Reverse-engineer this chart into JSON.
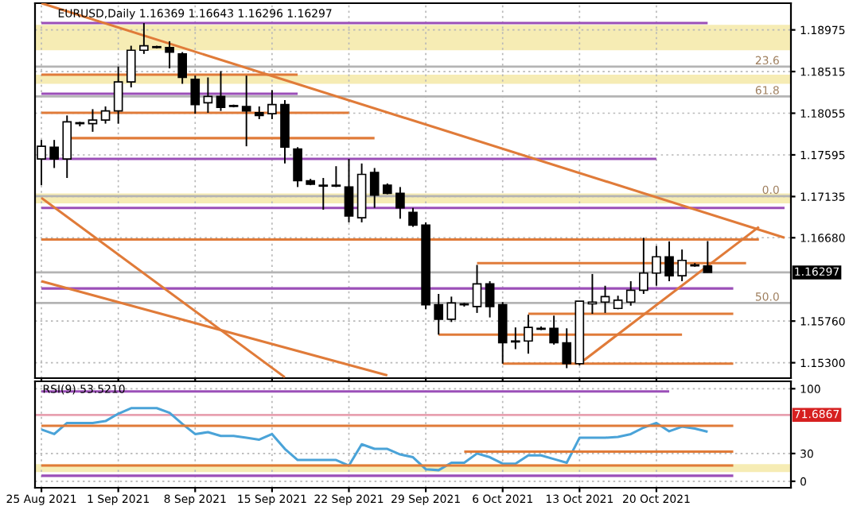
{
  "chart_data": [
    {
      "type": "candlestick",
      "title": "EURUSD,Daily 1.16369 1.16643 1.16296 1.16297",
      "categories": [
        null,
        null,
        null,
        null,
        null,
        null,
        null,
        null,
        null,
        null,
        null,
        null,
        null,
        null,
        null,
        null,
        null,
        null,
        null,
        null,
        null,
        null,
        null,
        null,
        null,
        null,
        null,
        null,
        null,
        null,
        null,
        null,
        null,
        null,
        null,
        null,
        null,
        null,
        null,
        null,
        null,
        null,
        null,
        null,
        null,
        null,
        null,
        null,
        null,
        null,
        null,
        null,
        null,
        null,
        null,
        null,
        null,
        null,
        null
      ],
      "ohlc": [
        [
          1.1755,
          1.1776,
          1.1726,
          1.1769
        ],
        [
          1.1768,
          1.1776,
          1.1745,
          1.1755
        ],
        [
          1.1755,
          1.1803,
          1.1734,
          1.1796
        ],
        [
          1.1794,
          1.1796,
          1.1791,
          1.1795
        ],
        [
          1.1794,
          1.181,
          1.1785,
          1.1798
        ],
        [
          1.1798,
          1.1813,
          1.1794,
          1.1808
        ],
        [
          1.1808,
          1.1857,
          1.1794,
          1.184
        ],
        [
          1.184,
          1.188,
          1.1834,
          1.1875
        ],
        [
          1.1875,
          1.1905,
          1.1871,
          1.188
        ],
        [
          1.1878,
          1.188,
          1.1877,
          1.1879
        ],
        [
          1.1878,
          1.1885,
          1.1855,
          1.1873
        ],
        [
          1.1871,
          1.1873,
          1.1838,
          1.1845
        ],
        [
          1.1843,
          1.1847,
          1.1805,
          1.1815
        ],
        [
          1.1817,
          1.1845,
          1.1806,
          1.1824
        ],
        [
          1.1824,
          1.1852,
          1.1808,
          1.1812
        ],
        [
          1.1813,
          1.1815,
          1.1812,
          1.1814
        ],
        [
          1.1813,
          1.1847,
          1.1769,
          1.1808
        ],
        [
          1.1806,
          1.1813,
          1.1799,
          1.1803
        ],
        [
          1.1805,
          1.1831,
          1.1799,
          1.1815
        ],
        [
          1.1815,
          1.182,
          1.175,
          1.1768
        ],
        [
          1.1766,
          1.1768,
          1.1724,
          1.1731
        ],
        [
          1.1731,
          1.1733,
          1.1726,
          1.1727
        ],
        [
          1.1726,
          1.1734,
          1.1699,
          1.1725
        ],
        [
          1.1726,
          1.1747,
          1.1724,
          1.1725
        ],
        [
          1.1724,
          1.1755,
          1.1685,
          1.1692
        ],
        [
          1.169,
          1.175,
          1.1685,
          1.1738
        ],
        [
          1.174,
          1.1745,
          1.1701,
          1.1715
        ],
        [
          1.1726,
          1.1728,
          1.1716,
          1.1717
        ],
        [
          1.1717,
          1.1724,
          1.1689,
          1.1701
        ],
        [
          1.1696,
          1.1701,
          1.168,
          1.1682
        ],
        [
          1.1682,
          1.1685,
          1.1589,
          1.1594
        ],
        [
          1.1594,
          1.1606,
          1.1561,
          1.1578
        ],
        [
          1.1578,
          1.1603,
          1.1575,
          1.1596
        ],
        [
          1.1594,
          1.1596,
          1.1592,
          1.1595
        ],
        [
          1.1592,
          1.1638,
          1.1585,
          1.1617
        ],
        [
          1.1617,
          1.162,
          1.158,
          1.1592
        ],
        [
          1.1594,
          1.1597,
          1.1529,
          1.1552
        ],
        [
          1.1554,
          1.1569,
          1.1545,
          1.1553
        ],
        [
          1.1554,
          1.1583,
          1.154,
          1.1569
        ],
        [
          1.1568,
          1.157,
          1.1566,
          1.1567
        ],
        [
          1.1568,
          1.1582,
          1.155,
          1.1552
        ],
        [
          1.1552,
          1.1568,
          1.1524,
          1.1529
        ],
        [
          1.1529,
          1.1598,
          1.1527,
          1.1598
        ],
        [
          1.1595,
          1.1628,
          1.1584,
          1.1597
        ],
        [
          1.1597,
          1.1615,
          1.1585,
          1.1603
        ],
        [
          1.159,
          1.1604,
          1.1589,
          1.1599
        ],
        [
          1.1597,
          1.162,
          1.1593,
          1.161
        ],
        [
          1.161,
          1.1668,
          1.1606,
          1.1629
        ],
        [
          1.1629,
          1.1659,
          1.1615,
          1.1647
        ],
        [
          1.1647,
          1.1664,
          1.162,
          1.1626
        ],
        [
          1.1626,
          1.1655,
          1.162,
          1.1643
        ],
        [
          1.1638,
          1.164,
          1.1636,
          1.1637
        ],
        [
          1.16369,
          1.16643,
          1.16296,
          1.16297
        ],
        null,
        null,
        null,
        null,
        null,
        null
      ],
      "ylim": [
        1.1513,
        1.1927
      ],
      "yticks": [
        1.18975,
        1.18515,
        1.18055,
        1.17595,
        1.17135,
        {
          "value": 1.1668,
          "label": "1.16680"
        },
        {
          "value": 1.1576,
          "label": "1.15760"
        },
        {
          "value": 1.153,
          "label": "1.15300"
        }
      ],
      "tick_labels": "y",
      "grid": true,
      "bands": [
        {
          "axis": "y",
          "from": 1.1875,
          "to": 1.1903,
          "color": "#f6ecb4"
        },
        {
          "axis": "y",
          "from": 1.1838,
          "to": 1.1848,
          "color": "#f6ecb4"
        },
        {
          "axis": "y",
          "from": 1.1706,
          "to": 1.1717,
          "color": "#f6ecb4"
        }
      ],
      "ref_lines": [
        {
          "axis": "y",
          "value": 1.1857,
          "color": "#b4b4b4"
        },
        {
          "axis": "y",
          "value": 1.1824,
          "color": "#b4b4b4"
        },
        {
          "axis": "y",
          "value": 1.1714,
          "color": "#b4b4b4"
        },
        {
          "axis": "y",
          "value": 1.1596,
          "color": "#b4b4b4"
        },
        {
          "axis": "y",
          "value": 1.16297,
          "label": "1.16297",
          "color": "#b4b4b4"
        }
      ],
      "annotations": [
        {
          "text": "23.6",
          "y": 1.1857
        },
        {
          "text": "61.8",
          "y": 1.1824
        },
        {
          "text": "0.0",
          "y": 1.1714
        },
        {
          "text": "50.0",
          "y": 1.1596
        }
      ],
      "series": [
        {
          "type": "line",
          "color": "#9b4fb8",
          "values": [
            1.1905,
            null,
            null,
            null,
            null,
            null,
            null,
            null,
            null,
            null,
            null,
            null,
            null,
            null,
            null,
            null,
            null,
            null,
            null,
            null,
            null,
            null,
            null,
            null,
            null,
            null,
            null,
            null,
            null,
            null,
            null,
            null,
            null,
            null,
            null,
            null,
            null,
            null,
            null,
            null,
            null,
            null,
            null,
            null,
            null,
            null,
            null,
            null,
            null,
            null,
            null,
            null,
            1.1905,
            null,
            null,
            null,
            null,
            null,
            null
          ]
        },
        {
          "type": "line",
          "color": "#e07b39",
          "values": [
            1.1848,
            null,
            null,
            null,
            null,
            null,
            null,
            null,
            null,
            null,
            null,
            null,
            null,
            null,
            null,
            null,
            null,
            null,
            null,
            null,
            1.1848,
            null,
            null,
            null,
            null,
            null,
            null,
            null,
            null,
            null,
            null,
            null,
            null,
            null,
            null,
            null,
            null,
            null,
            null,
            null,
            null,
            null,
            null,
            null,
            null,
            null,
            null,
            null,
            null,
            null,
            null,
            null,
            null,
            null,
            null,
            null,
            null,
            null,
            null
          ]
        },
        {
          "type": "line",
          "color": "#9b4fb8",
          "values": [
            1.1827,
            null,
            null,
            null,
            null,
            null,
            null,
            null,
            null,
            null,
            null,
            null,
            null,
            null,
            null,
            null,
            null,
            null,
            null,
            null,
            1.1827,
            null,
            null,
            null,
            null,
            null,
            null,
            null,
            null,
            null,
            null,
            null,
            null,
            null,
            null,
            null,
            null,
            null,
            null,
            null,
            null,
            null,
            null,
            null,
            null,
            null,
            null,
            null,
            null,
            null,
            null,
            null,
            null,
            null,
            null,
            null,
            null,
            null,
            null
          ]
        },
        {
          "type": "line",
          "color": "#e07b39",
          "values": [
            1.1806,
            null,
            null,
            null,
            null,
            null,
            null,
            null,
            null,
            null,
            null,
            null,
            null,
            null,
            null,
            null,
            null,
            null,
            null,
            null,
            null,
            null,
            null,
            null,
            1.1806,
            null,
            null,
            null,
            null,
            null,
            null,
            null,
            null,
            null,
            null,
            null,
            null,
            null,
            null,
            null,
            null,
            null,
            null,
            null,
            null,
            null,
            null,
            null,
            null,
            null,
            null,
            null,
            null,
            null,
            null,
            null,
            null,
            null,
            null
          ]
        },
        {
          "type": "line",
          "color": "#e07b39",
          "values": [
            null,
            null,
            1.1778,
            null,
            null,
            null,
            null,
            null,
            null,
            null,
            null,
            null,
            null,
            null,
            null,
            null,
            null,
            null,
            null,
            null,
            null,
            null,
            null,
            null,
            null,
            null,
            1.1778,
            null,
            null,
            null,
            null,
            null,
            null,
            null,
            null,
            null,
            null,
            null,
            null,
            null,
            null,
            null,
            null,
            null,
            null,
            null,
            null,
            null,
            null,
            null,
            null,
            null,
            null,
            null,
            null,
            null,
            null,
            null,
            null
          ]
        },
        {
          "type": "line",
          "color": "#9b4fb8",
          "values": [
            1.1755,
            null,
            null,
            null,
            null,
            null,
            null,
            null,
            null,
            null,
            null,
            null,
            null,
            null,
            null,
            null,
            null,
            null,
            null,
            null,
            null,
            null,
            null,
            null,
            null,
            null,
            null,
            null,
            null,
            null,
            null,
            null,
            null,
            null,
            null,
            null,
            null,
            null,
            null,
            null,
            null,
            null,
            null,
            null,
            null,
            null,
            null,
            null,
            1.1755,
            null,
            null,
            null,
            null,
            null,
            null,
            null,
            null,
            null,
            null
          ]
        },
        {
          "type": "line",
          "color": "#9b4fb8",
          "values": [
            1.1701,
            null,
            null,
            null,
            null,
            null,
            null,
            null,
            null,
            null,
            null,
            null,
            null,
            null,
            null,
            null,
            null,
            null,
            null,
            null,
            null,
            null,
            null,
            null,
            null,
            null,
            null,
            null,
            null,
            null,
            null,
            null,
            null,
            null,
            null,
            null,
            null,
            null,
            null,
            null,
            null,
            null,
            null,
            null,
            null,
            null,
            null,
            null,
            null,
            null,
            null,
            null,
            null,
            null,
            null,
            null,
            null,
            null,
            1.1701
          ]
        },
        {
          "type": "line",
          "color": "#e07b39",
          "values": [
            1.1666,
            null,
            null,
            null,
            null,
            null,
            null,
            null,
            null,
            null,
            null,
            null,
            null,
            null,
            null,
            null,
            null,
            null,
            null,
            null,
            null,
            null,
            null,
            null,
            null,
            null,
            null,
            null,
            null,
            null,
            null,
            null,
            null,
            null,
            null,
            null,
            null,
            null,
            null,
            null,
            null,
            null,
            null,
            null,
            null,
            null,
            null,
            null,
            null,
            null,
            null,
            null,
            null,
            null,
            null,
            null,
            1.1666,
            null,
            null
          ]
        },
        {
          "type": "line",
          "color": "#e07b39",
          "values": [
            null,
            null,
            null,
            null,
            null,
            null,
            null,
            null,
            null,
            null,
            null,
            null,
            null,
            null,
            null,
            null,
            null,
            null,
            null,
            null,
            null,
            null,
            null,
            null,
            null,
            null,
            null,
            null,
            null,
            null,
            null,
            null,
            null,
            null,
            1.164,
            null,
            null,
            null,
            null,
            null,
            null,
            null,
            null,
            null,
            null,
            null,
            null,
            null,
            null,
            null,
            null,
            null,
            null,
            null,
            null,
            1.164,
            null,
            null,
            null
          ]
        },
        {
          "type": "line",
          "color": "#9b4fb8",
          "values": [
            1.1612,
            null,
            null,
            null,
            null,
            null,
            null,
            null,
            null,
            null,
            null,
            null,
            null,
            null,
            null,
            null,
            null,
            null,
            null,
            null,
            null,
            null,
            null,
            null,
            null,
            null,
            null,
            null,
            null,
            null,
            null,
            null,
            null,
            null,
            null,
            null,
            null,
            null,
            null,
            null,
            null,
            null,
            null,
            null,
            null,
            null,
            null,
            null,
            null,
            null,
            null,
            null,
            null,
            null,
            1.1612,
            null,
            null,
            null,
            null
          ]
        },
        {
          "type": "line",
          "color": "#e07b39",
          "values": [
            null,
            null,
            null,
            null,
            null,
            null,
            null,
            null,
            null,
            null,
            null,
            null,
            null,
            null,
            null,
            null,
            null,
            null,
            null,
            null,
            null,
            null,
            null,
            null,
            null,
            null,
            null,
            null,
            null,
            null,
            null,
            null,
            null,
            null,
            null,
            null,
            null,
            null,
            1.1584,
            null,
            null,
            null,
            null,
            null,
            null,
            null,
            null,
            null,
            null,
            null,
            null,
            null,
            null,
            null,
            1.1584,
            null,
            null,
            null,
            null
          ]
        },
        {
          "type": "line",
          "color": "#e07b39",
          "values": [
            null,
            null,
            null,
            null,
            null,
            null,
            null,
            null,
            null,
            null,
            null,
            null,
            null,
            null,
            null,
            null,
            null,
            null,
            null,
            null,
            null,
            null,
            null,
            null,
            null,
            null,
            null,
            null,
            null,
            null,
            null,
            1.1561,
            null,
            null,
            null,
            null,
            null,
            null,
            null,
            null,
            null,
            null,
            null,
            null,
            null,
            null,
            null,
            null,
            null,
            null,
            1.1561,
            null,
            null,
            null,
            null,
            null,
            null,
            null,
            null
          ]
        },
        {
          "type": "line",
          "color": "#e07b39",
          "values": [
            null,
            null,
            null,
            null,
            null,
            null,
            null,
            null,
            null,
            null,
            null,
            null,
            null,
            null,
            null,
            null,
            null,
            null,
            null,
            null,
            null,
            null,
            null,
            null,
            null,
            null,
            null,
            null,
            null,
            null,
            null,
            null,
            null,
            null,
            null,
            null,
            1.1529,
            null,
            null,
            null,
            null,
            null,
            null,
            null,
            null,
            null,
            null,
            null,
            null,
            null,
            null,
            null,
            null,
            null,
            1.1529,
            null,
            null,
            null,
            null
          ]
        },
        {
          "type": "line",
          "color": "#e07b39",
          "values": [
            1.1927,
            null,
            null,
            null,
            null,
            null,
            null,
            null,
            null,
            null,
            null,
            null,
            null,
            null,
            null,
            null,
            null,
            null,
            null,
            null,
            null,
            null,
            null,
            null,
            null,
            null,
            null,
            null,
            null,
            null,
            null,
            null,
            null,
            null,
            null,
            null,
            null,
            null,
            null,
            null,
            null,
            null,
            null,
            null,
            null,
            null,
            null,
            null,
            null,
            null,
            null,
            null,
            null,
            null,
            null,
            null,
            null,
            null,
            1.1668
          ]
        },
        {
          "type": "line",
          "color": "#e07b39",
          "values": [
            null,
            null,
            null,
            null,
            null,
            null,
            null,
            null,
            null,
            null,
            null,
            null,
            null,
            null,
            null,
            null,
            null,
            null,
            null,
            null,
            null,
            null,
            null,
            null,
            null,
            null,
            null,
            null,
            null,
            null,
            null,
            null,
            null,
            null,
            null,
            null,
            null,
            null,
            null,
            null,
            null,
            null,
            1.1529,
            null,
            null,
            null,
            null,
            null,
            null,
            null,
            null,
            null,
            null,
            null,
            null,
            null,
            1.168,
            null,
            null
          ]
        },
        {
          "type": "line",
          "color": "#e07b39",
          "values": [
            1.1712,
            null,
            null,
            null,
            null,
            null,
            null,
            null,
            null,
            null,
            null,
            null,
            null,
            null,
            null,
            null,
            null,
            null,
            null,
            1.1514,
            null,
            null,
            null,
            null,
            null,
            null,
            null,
            null,
            null,
            null,
            null,
            null,
            null,
            null,
            null,
            null,
            null,
            null,
            null,
            null,
            null,
            null,
            null,
            null,
            null,
            null,
            null,
            null,
            null,
            null,
            null,
            null,
            null,
            null,
            null,
            null,
            null,
            null,
            null
          ]
        },
        {
          "type": "line",
          "color": "#e07b39",
          "values": [
            1.162,
            null,
            null,
            null,
            null,
            null,
            null,
            null,
            null,
            null,
            null,
            null,
            null,
            null,
            null,
            null,
            null,
            null,
            null,
            null,
            null,
            null,
            null,
            null,
            null,
            null,
            null,
            1.1516,
            null,
            null,
            null,
            null,
            null,
            null,
            null,
            null,
            null,
            null,
            null,
            null,
            null,
            null,
            null,
            null,
            null,
            null,
            null,
            null,
            null,
            null,
            null,
            null,
            null,
            null,
            null,
            null,
            null,
            null,
            null
          ]
        }
      ]
    },
    {
      "type": "line",
      "categories": [
        "25 Aug 2021",
        null,
        null,
        null,
        null,
        null,
        "1 Sep 2021",
        null,
        null,
        null,
        null,
        null,
        "8 Sep 2021",
        null,
        null,
        null,
        null,
        null,
        "15 Sep 2021",
        null,
        null,
        null,
        null,
        null,
        "22 Sep 2021",
        null,
        null,
        null,
        null,
        null,
        "29 Sep 2021",
        null,
        null,
        null,
        null,
        null,
        "6 Oct 2021",
        null,
        null,
        null,
        null,
        null,
        "13 Oct 2021",
        null,
        null,
        null,
        null,
        null,
        "20 Oct 2021",
        null,
        null,
        null,
        null,
        null,
        null,
        null,
        null,
        null,
        null
      ],
      "annotations": [
        "RSI(9) 53.5210"
      ],
      "ylim": [
        -7,
        108
      ],
      "yticks": [
        100,
        30,
        0
      ],
      "grid": true,
      "bands": [
        {
          "axis": "y",
          "from": 10,
          "to": 18.6,
          "color": "#f6ecb4"
        }
      ],
      "ref_lines": [
        {
          "axis": "y",
          "value": 71.6867,
          "label": "71.6867",
          "color": "#e8a0b0"
        }
      ],
      "series": [
        {
          "color": "#4aa3d8",
          "values": [
            56,
            51,
            63,
            63,
            63,
            65,
            73,
            79,
            79,
            79,
            74,
            62,
            51,
            53,
            49,
            49,
            47,
            45,
            51,
            35,
            23,
            23,
            23,
            23,
            17,
            40,
            35,
            35,
            29,
            26,
            13,
            12,
            20,
            20,
            30,
            26,
            19,
            19,
            28,
            28,
            24,
            20,
            47,
            47,
            47,
            48,
            51,
            58,
            63,
            54,
            59,
            57,
            53.521,
            null,
            null,
            null,
            null,
            null,
            null
          ]
        },
        {
          "color": "#9b4fb8",
          "values": [
            97,
            null,
            null,
            null,
            null,
            null,
            null,
            null,
            null,
            null,
            null,
            null,
            null,
            null,
            null,
            null,
            null,
            null,
            null,
            null,
            null,
            null,
            null,
            null,
            null,
            null,
            null,
            null,
            null,
            null,
            null,
            null,
            null,
            null,
            null,
            null,
            null,
            null,
            null,
            null,
            null,
            null,
            null,
            null,
            null,
            null,
            null,
            null,
            null,
            97,
            null,
            null,
            null,
            null,
            null,
            null,
            null,
            null,
            null
          ]
        },
        {
          "color": "#e07b39",
          "values": [
            60,
            null,
            null,
            null,
            null,
            null,
            null,
            null,
            null,
            null,
            null,
            null,
            null,
            null,
            null,
            null,
            null,
            null,
            null,
            null,
            null,
            null,
            null,
            null,
            null,
            null,
            null,
            null,
            null,
            null,
            null,
            null,
            null,
            null,
            null,
            null,
            null,
            null,
            null,
            null,
            null,
            null,
            null,
            null,
            null,
            null,
            null,
            null,
            null,
            null,
            null,
            null,
            null,
            null,
            60,
            null,
            null,
            null,
            null
          ]
        },
        {
          "color": "#e07b39",
          "values": [
            null,
            null,
            null,
            null,
            null,
            null,
            null,
            null,
            null,
            null,
            null,
            null,
            null,
            null,
            null,
            null,
            null,
            null,
            null,
            null,
            null,
            null,
            null,
            null,
            null,
            null,
            null,
            null,
            null,
            null,
            null,
            null,
            null,
            32,
            null,
            null,
            null,
            null,
            null,
            null,
            null,
            null,
            null,
            null,
            null,
            null,
            null,
            null,
            null,
            null,
            null,
            null,
            null,
            null,
            32,
            null,
            null,
            null,
            null
          ]
        },
        {
          "color": "#e07b39",
          "values": [
            17,
            null,
            null,
            null,
            null,
            null,
            null,
            null,
            null,
            null,
            null,
            null,
            null,
            null,
            null,
            null,
            null,
            null,
            null,
            null,
            null,
            null,
            null,
            null,
            null,
            null,
            null,
            null,
            null,
            null,
            null,
            null,
            null,
            null,
            null,
            null,
            null,
            null,
            null,
            null,
            null,
            null,
            null,
            null,
            null,
            null,
            null,
            null,
            null,
            null,
            null,
            null,
            null,
            null,
            17,
            null,
            null,
            null,
            null
          ]
        },
        {
          "color": "#9b4fb8",
          "values": [
            6,
            null,
            null,
            null,
            null,
            null,
            null,
            null,
            null,
            null,
            null,
            null,
            null,
            null,
            null,
            null,
            null,
            null,
            null,
            null,
            null,
            null,
            null,
            null,
            null,
            null,
            null,
            null,
            null,
            null,
            null,
            null,
            null,
            null,
            null,
            null,
            null,
            null,
            null,
            null,
            null,
            null,
            null,
            null,
            null,
            null,
            null,
            null,
            null,
            null,
            null,
            null,
            null,
            null,
            6,
            null,
            null,
            null,
            null
          ]
        }
      ]
    }
  ]
}
